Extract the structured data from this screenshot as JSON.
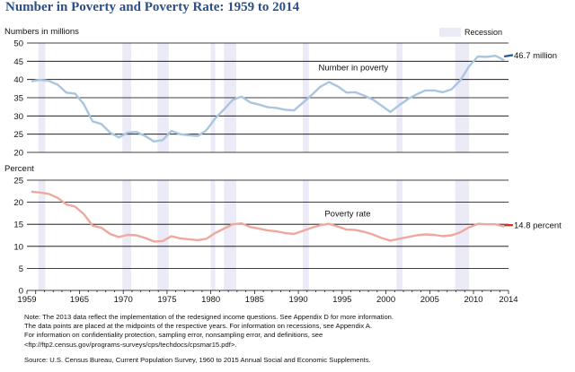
{
  "title": "Number in Poverty and Poverty Rate: 1959 to 2014",
  "legend": {
    "recession_label": "Recession"
  },
  "notes": [
    "Note: The 2013 data reflect the implementation of the redesigned income questions. See Appendix D for more information.",
    "The data points are placed at the midpoints of the respective years. For information on recessions, see Appendix A.",
    "For information on confidentiality protection, sampling error, nonsampling error, and definitions, see",
    "<ftp://ftp2.census.gov/programs-surveys/cps/techdocs/cpsmar15.pdf>."
  ],
  "source": "Source: U.S. Census Bureau, Current Population Survey, 1960 to 2015 Annual Social and Economic Supplements.",
  "colors": {
    "title": "#2a4f8a",
    "recession": "#ebebf7",
    "poverty_number": "#a9c6e0",
    "poverty_number_2013": "#2a5d96",
    "poverty_rate": "#f0a79d",
    "poverty_rate_2013": "#c0392b"
  },
  "chart_data": [
    {
      "type": "line",
      "ylabel": "Numbers in millions",
      "ylim": [
        20,
        50
      ],
      "yticks": [
        "20",
        "25",
        "30",
        "35",
        "40",
        "45",
        "50"
      ],
      "recessions": [
        [
          1960.3,
          1961.1
        ],
        [
          1969.9,
          1970.9
        ],
        [
          1973.9,
          1975.2
        ],
        [
          1980.0,
          1980.5
        ],
        [
          1981.5,
          1982.9
        ],
        [
          1990.5,
          1991.2
        ],
        [
          2001.2,
          2001.9
        ],
        [
          2007.9,
          2009.5
        ]
      ],
      "series": [
        {
          "name": "Number in poverty",
          "x": [
            1959,
            1960,
            1961,
            1962,
            1963,
            1964,
            1965,
            1966,
            1967,
            1968,
            1969,
            1970,
            1971,
            1972,
            1973,
            1974,
            1975,
            1976,
            1977,
            1978,
            1979,
            1980,
            1981,
            1982,
            1983,
            1984,
            1985,
            1986,
            1987,
            1988,
            1989,
            1990,
            1991,
            1992,
            1993,
            1994,
            1995,
            1996,
            1997,
            1998,
            1999,
            2000,
            2001,
            2002,
            2003,
            2004,
            2005,
            2006,
            2007,
            2008,
            2009,
            2010,
            2011,
            2012,
            2013
          ],
          "values": [
            39.5,
            39.9,
            39.6,
            38.6,
            36.4,
            36.1,
            33.2,
            28.5,
            27.8,
            25.4,
            24.1,
            25.4,
            25.6,
            24.5,
            23.0,
            23.4,
            25.9,
            25.0,
            24.7,
            24.5,
            26.1,
            29.3,
            31.8,
            34.4,
            35.3,
            33.7,
            33.1,
            32.4,
            32.2,
            31.7,
            31.5,
            33.6,
            35.7,
            38.0,
            39.3,
            38.1,
            36.4,
            36.5,
            35.6,
            34.5,
            32.8,
            31.1,
            32.9,
            34.6,
            35.9,
            37.0,
            37.0,
            36.5,
            37.3,
            39.8,
            43.6,
            46.3,
            46.2,
            46.5,
            45.3
          ]
        },
        {
          "name": "",
          "x": [
            2013,
            2014
          ],
          "values": [
            46.3,
            46.7
          ]
        }
      ],
      "annotations": {
        "series_label": "Number in poverty",
        "end_label": "46.7 million"
      }
    },
    {
      "type": "line",
      "ylabel": "Percent",
      "ylim": [
        0,
        25
      ],
      "yticks": [
        "0",
        "5",
        "10",
        "15",
        "20",
        "25"
      ],
      "recessions": [
        [
          1960.3,
          1961.1
        ],
        [
          1969.9,
          1970.9
        ],
        [
          1973.9,
          1975.2
        ],
        [
          1980.0,
          1980.5
        ],
        [
          1981.5,
          1982.9
        ],
        [
          1990.5,
          1991.2
        ],
        [
          2001.2,
          2001.9
        ],
        [
          2007.9,
          2009.5
        ]
      ],
      "series": [
        {
          "name": "Poverty rate",
          "x": [
            1959,
            1960,
            1961,
            1962,
            1963,
            1964,
            1965,
            1966,
            1967,
            1968,
            1969,
            1970,
            1971,
            1972,
            1973,
            1974,
            1975,
            1976,
            1977,
            1978,
            1979,
            1980,
            1981,
            1982,
            1983,
            1984,
            1985,
            1986,
            1987,
            1988,
            1989,
            1990,
            1991,
            1992,
            1993,
            1994,
            1995,
            1996,
            1997,
            1998,
            1999,
            2000,
            2001,
            2002,
            2003,
            2004,
            2005,
            2006,
            2007,
            2008,
            2009,
            2010,
            2011,
            2012,
            2013
          ],
          "values": [
            22.4,
            22.2,
            21.9,
            21.0,
            19.5,
            19.0,
            17.3,
            14.7,
            14.2,
            12.8,
            12.1,
            12.6,
            12.5,
            11.9,
            11.1,
            11.2,
            12.3,
            11.8,
            11.6,
            11.4,
            11.7,
            13.0,
            14.0,
            15.0,
            15.2,
            14.4,
            14.0,
            13.6,
            13.4,
            13.0,
            12.8,
            13.5,
            14.2,
            14.8,
            15.1,
            14.5,
            13.8,
            13.7,
            13.3,
            12.7,
            11.9,
            11.3,
            11.7,
            12.1,
            12.5,
            12.7,
            12.6,
            12.3,
            12.5,
            13.2,
            14.3,
            15.1,
            15.0,
            15.0,
            14.5
          ]
        },
        {
          "name": "",
          "x": [
            2013,
            2014
          ],
          "values": [
            14.8,
            14.8
          ]
        }
      ],
      "annotations": {
        "series_label": "Poverty rate",
        "end_label": "14.8 percent"
      }
    }
  ],
  "xaxis": {
    "min": 1959,
    "max": 2014,
    "labels": [
      "1959",
      "1965",
      "1970",
      "1975",
      "1980",
      "1985",
      "1990",
      "1995",
      "2000",
      "2005",
      "2010",
      "2014"
    ]
  }
}
